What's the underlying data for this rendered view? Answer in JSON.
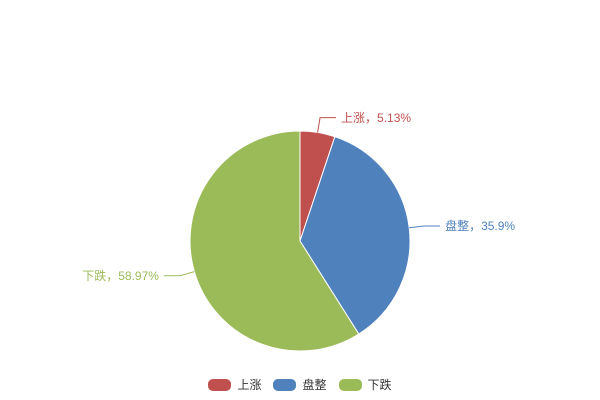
{
  "page": {
    "background": "#ffffff"
  },
  "chart_data": {
    "type": "pie",
    "title": "",
    "unit": "%",
    "start_angle_deg": 0,
    "direction": "clockwise",
    "legend_position": "bottom",
    "legend_text_color": "#333333",
    "slice_border_color": "#ffffff",
    "slices": [
      {
        "key": "up",
        "label": "上涨",
        "value": 5.13,
        "display": "上涨，5.13%",
        "color": "#c0504d"
      },
      {
        "key": "flat",
        "label": "盘整",
        "value": 35.9,
        "display": "盘整，35.9%",
        "color": "#4f81bd"
      },
      {
        "key": "down",
        "label": "下跌",
        "value": 58.97,
        "display": "下跌，58.97%",
        "color": "#9bbb59"
      }
    ],
    "legend_items": [
      "上涨",
      "盘整",
      "下跌"
    ]
  }
}
